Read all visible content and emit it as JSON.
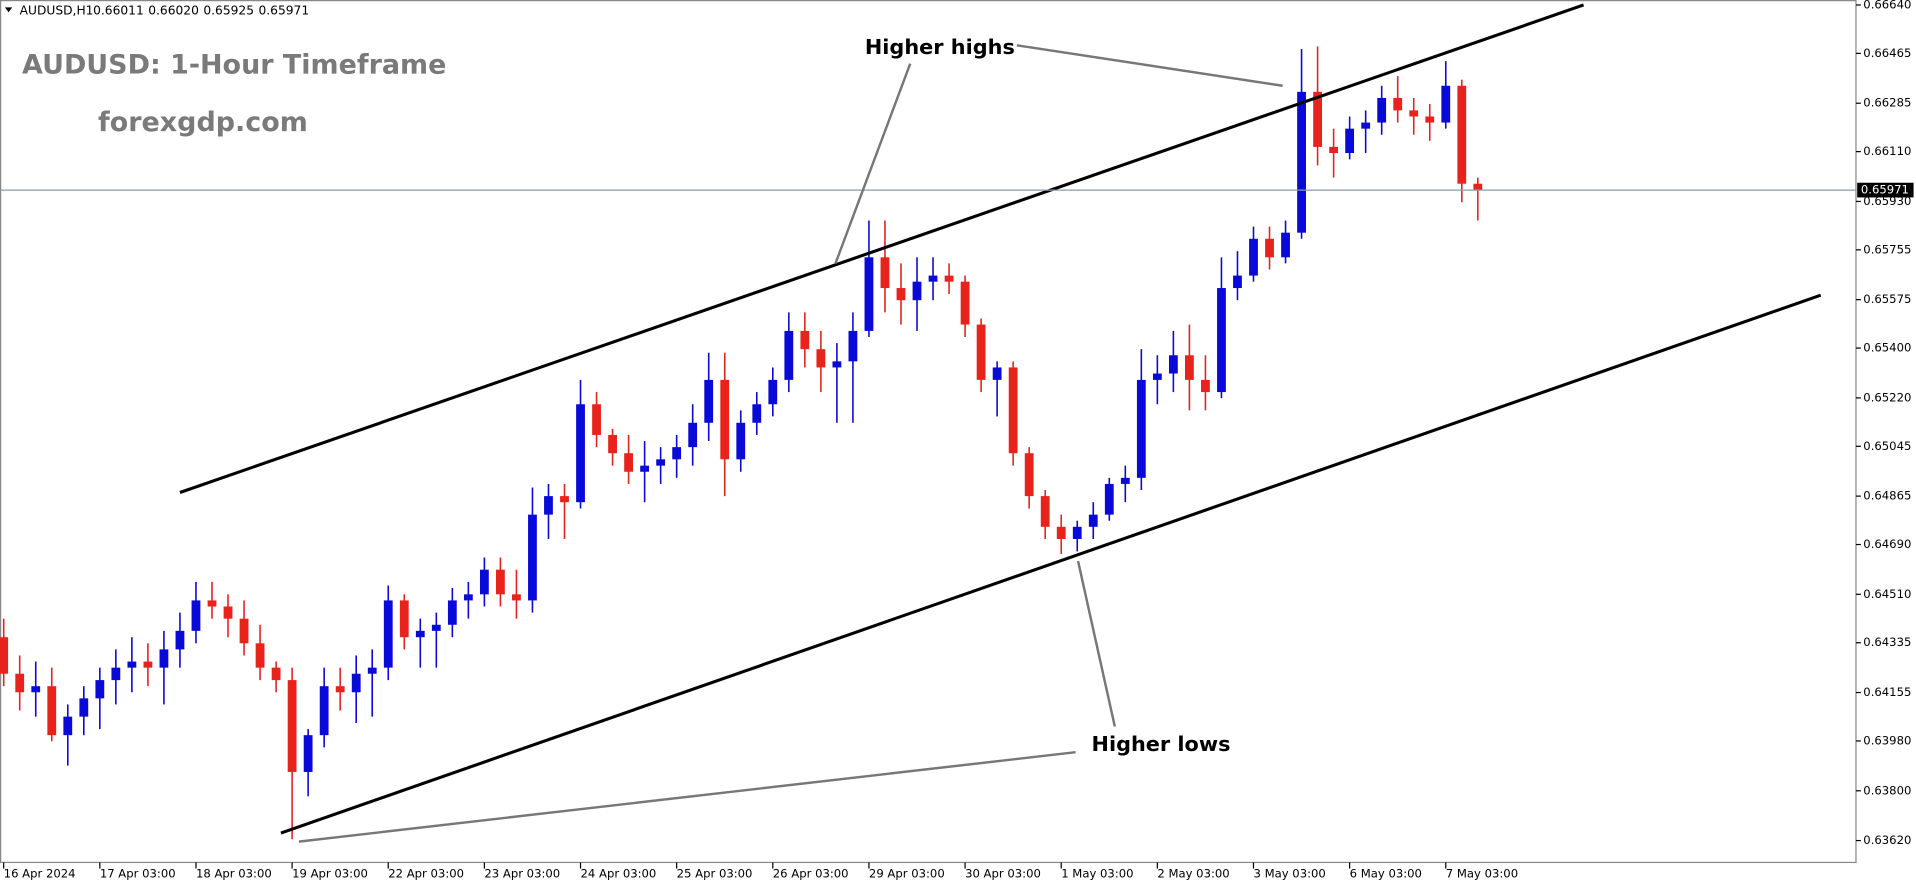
{
  "chart_data": {
    "type": "candlestick",
    "symbol": "AUDUSD,H1",
    "last_bar": {
      "values": [
        0.66011,
        0.6602,
        0.65925,
        0.65971
      ],
      "value_labels": [
        "0.66011",
        "0.66020",
        "0.65925",
        "0.65971"
      ]
    },
    "title": "AUDUSD: 1-Hour Timeframe",
    "subtitle": "forexgdp.com",
    "annotations": [
      "Higher highs",
      "Higher lows"
    ],
    "up_color": "#0a0ad8",
    "down_color": "#e8231c",
    "trendline_color": "#000000",
    "ylim": [
      0.63541,
      0.66658
    ],
    "yticks": [
      {
        "value": 0.6664,
        "label": "0.66640"
      },
      0.66465,
      0.66285,
      {
        "value": 0.6611,
        "label": "0.66110"
      },
      {
        "value": 0.6593,
        "label": "0.65930"
      },
      0.65755,
      0.65575,
      {
        "value": 0.654,
        "label": "0.65400"
      },
      {
        "value": 0.6522,
        "label": "0.65220"
      },
      0.65045,
      0.64865,
      {
        "value": 0.6469,
        "label": "0.64690"
      },
      {
        "value": 0.6451,
        "label": "0.64510"
      },
      0.64335,
      0.64155,
      {
        "value": 0.6398,
        "label": "0.63980"
      },
      {
        "value": 0.638,
        "label": "0.63800"
      },
      {
        "value": 0.6362,
        "label": "0.63620"
      }
    ],
    "xlim": [
      -0.23,
      115.6
    ],
    "xticks": [
      {
        "value": 0,
        "label": "16 Apr 2024"
      },
      {
        "value": 6,
        "label": "17 Apr 03:00"
      },
      {
        "value": 12,
        "label": "18 Apr 03:00"
      },
      {
        "value": 18,
        "label": "19 Apr 03:00"
      },
      {
        "value": 24,
        "label": "22 Apr 03:00"
      },
      {
        "value": 30,
        "label": "23 Apr 03:00"
      },
      {
        "value": 36,
        "label": "24 Apr 03:00"
      },
      {
        "value": 42,
        "label": "25 Apr 03:00"
      },
      {
        "value": 48,
        "label": "26 Apr 03:00"
      },
      {
        "value": 54,
        "label": "29 Apr 03:00"
      },
      {
        "value": 60,
        "label": "30 Apr 03:00"
      },
      {
        "value": 66,
        "label": "1 May 03:00"
      },
      {
        "value": 72,
        "label": "2 May 03:00"
      },
      {
        "value": 78,
        "label": "3 May 03:00"
      },
      {
        "value": 84,
        "label": "6 May 03:00"
      },
      {
        "value": 90,
        "label": "7 May 03:00"
      }
    ],
    "trendlines": [
      {
        "x": [
          11.0,
          98.6
        ],
        "y": [
          0.64878,
          0.6664
        ]
      },
      {
        "x": [
          17.3,
          113.4
        ],
        "y": [
          0.63647,
          0.65591
        ]
      }
    ],
    "ohlc": [
      [
        0.64355,
        0.64422,
        0.64178,
        0.64223
      ],
      [
        0.64223,
        0.64289,
        0.6409,
        0.64156
      ],
      [
        0.64156,
        0.64267,
        0.64068,
        0.64178
      ],
      [
        0.64178,
        0.64245,
        0.63979,
        0.64001
      ],
      [
        0.64001,
        0.64112,
        0.63891,
        0.64068
      ],
      [
        0.64068,
        0.64178,
        0.64001,
        0.64134
      ],
      [
        0.64134,
        0.64245,
        0.64023,
        0.642
      ],
      [
        0.642,
        0.64311,
        0.64112,
        0.64245
      ],
      [
        0.64245,
        0.64355,
        0.64156,
        0.64267
      ],
      [
        0.64267,
        0.64333,
        0.64178,
        0.64245
      ],
      [
        0.64245,
        0.64378,
        0.64112,
        0.64311
      ],
      [
        0.64311,
        0.64444,
        0.64245,
        0.64378
      ],
      [
        0.64378,
        0.64555,
        0.64333,
        0.64488
      ],
      [
        0.64488,
        0.64555,
        0.64422,
        0.64466
      ],
      [
        0.64466,
        0.6451,
        0.64355,
        0.64422
      ],
      [
        0.64422,
        0.64488,
        0.64289,
        0.64333
      ],
      [
        0.64333,
        0.644,
        0.642,
        0.64245
      ],
      [
        0.64245,
        0.64267,
        0.64156,
        0.642
      ],
      [
        0.642,
        0.64245,
        0.63625,
        0.63868
      ],
      [
        0.63868,
        0.64023,
        0.6378,
        0.64001
      ],
      [
        0.64001,
        0.64245,
        0.63957,
        0.64178
      ],
      [
        0.64178,
        0.64245,
        0.6409,
        0.64156
      ],
      [
        0.64156,
        0.64289,
        0.64045,
        0.64223
      ],
      [
        0.64223,
        0.64311,
        0.64068,
        0.64245
      ],
      [
        0.64245,
        0.64542,
        0.642,
        0.64488
      ],
      [
        0.64488,
        0.6451,
        0.64311,
        0.64355
      ],
      [
        0.64355,
        0.64422,
        0.64245,
        0.64378
      ],
      [
        0.64378,
        0.64444,
        0.64245,
        0.644
      ],
      [
        0.644,
        0.64533,
        0.64355,
        0.64488
      ],
      [
        0.64488,
        0.64555,
        0.64422,
        0.6451
      ],
      [
        0.6451,
        0.64643,
        0.64466,
        0.64599
      ],
      [
        0.64599,
        0.64643,
        0.64466,
        0.6451
      ],
      [
        0.6451,
        0.64599,
        0.64422,
        0.64488
      ],
      [
        0.64488,
        0.64896,
        0.64444,
        0.64798
      ],
      [
        0.64798,
        0.64909,
        0.6471,
        0.64865
      ],
      [
        0.64865,
        0.64909,
        0.6471,
        0.64843
      ],
      [
        0.64843,
        0.65285,
        0.6482,
        0.65197
      ],
      [
        0.65197,
        0.65241,
        0.65042,
        0.65086
      ],
      [
        0.65086,
        0.65108,
        0.64975,
        0.6502
      ],
      [
        0.6502,
        0.65086,
        0.64909,
        0.64953
      ],
      [
        0.64953,
        0.65064,
        0.64843,
        0.64975
      ],
      [
        0.64975,
        0.65042,
        0.64909,
        0.64998
      ],
      [
        0.64998,
        0.65086,
        0.64931,
        0.65042
      ],
      [
        0.65042,
        0.65197,
        0.64975,
        0.6513
      ],
      [
        0.6513,
        0.65383,
        0.65064,
        0.65285
      ],
      [
        0.65285,
        0.65383,
        0.64865,
        0.64998
      ],
      [
        0.64998,
        0.65175,
        0.64953,
        0.6513
      ],
      [
        0.6513,
        0.65241,
        0.65086,
        0.65197
      ],
      [
        0.65197,
        0.6533,
        0.65153,
        0.65285
      ],
      [
        0.65285,
        0.65529,
        0.65241,
        0.65462
      ],
      [
        0.65462,
        0.65529,
        0.6533,
        0.65396
      ],
      [
        0.65396,
        0.65462,
        0.65241,
        0.6533
      ],
      [
        0.6533,
        0.65418,
        0.6513,
        0.65352
      ],
      [
        0.65352,
        0.65529,
        0.6513,
        0.65462
      ],
      [
        0.65462,
        0.65861,
        0.6544,
        0.65728
      ],
      [
        0.65728,
        0.65861,
        0.65529,
        0.65617
      ],
      [
        0.65617,
        0.65706,
        0.65485,
        0.65573
      ],
      [
        0.65573,
        0.65728,
        0.65462,
        0.6564
      ],
      [
        0.6564,
        0.65728,
        0.65573,
        0.65662
      ],
      [
        0.65662,
        0.65706,
        0.65595,
        0.6564
      ],
      [
        0.6564,
        0.65662,
        0.6544,
        0.65485
      ],
      [
        0.65485,
        0.65507,
        0.65241,
        0.65285
      ],
      [
        0.65285,
        0.65352,
        0.65153,
        0.6533
      ],
      [
        0.6533,
        0.65352,
        0.64975,
        0.6502
      ],
      [
        0.6502,
        0.65042,
        0.6482,
        0.64865
      ],
      [
        0.64865,
        0.64887,
        0.6471,
        0.64754
      ],
      [
        0.64754,
        0.64798,
        0.64656,
        0.6471
      ],
      [
        0.6471,
        0.64776,
        0.64665,
        0.64754
      ],
      [
        0.64754,
        0.64843,
        0.6471,
        0.64798
      ],
      [
        0.64798,
        0.64931,
        0.64776,
        0.64909
      ],
      [
        0.64909,
        0.64975,
        0.64843,
        0.64931
      ],
      [
        0.64931,
        0.65396,
        0.64887,
        0.65285
      ],
      [
        0.65285,
        0.65374,
        0.65197,
        0.65308
      ],
      [
        0.65308,
        0.65462,
        0.65241,
        0.65374
      ],
      [
        0.65374,
        0.65485,
        0.65175,
        0.65285
      ],
      [
        0.65285,
        0.65374,
        0.65175,
        0.65241
      ],
      [
        0.65241,
        0.65728,
        0.65219,
        0.65617
      ],
      [
        0.65617,
        0.6575,
        0.65573,
        0.65662
      ],
      [
        0.65662,
        0.65839,
        0.6564,
        0.65795
      ],
      [
        0.65795,
        0.65839,
        0.65684,
        0.65728
      ],
      [
        0.65728,
        0.65861,
        0.65706,
        0.65817
      ],
      [
        0.65817,
        0.66481,
        0.65795,
        0.66326
      ],
      [
        0.66326,
        0.6649,
        0.6606,
        0.66127
      ],
      [
        0.66127,
        0.66193,
        0.66016,
        0.66105
      ],
      [
        0.66105,
        0.66237,
        0.66082,
        0.66193
      ],
      [
        0.66193,
        0.66259,
        0.66105,
        0.66215
      ],
      [
        0.66215,
        0.66348,
        0.66171,
        0.66304
      ],
      [
        0.66304,
        0.66383,
        0.66215,
        0.66259
      ],
      [
        0.66259,
        0.66304,
        0.66171,
        0.66237
      ],
      [
        0.66237,
        0.66282,
        0.66149,
        0.66215
      ],
      [
        0.66215,
        0.66437,
        0.66193,
        0.66348
      ],
      [
        0.66348,
        0.6637,
        0.65927,
        0.65994
      ],
      [
        0.65994,
        0.66016,
        0.65861,
        0.65971
      ]
    ]
  }
}
